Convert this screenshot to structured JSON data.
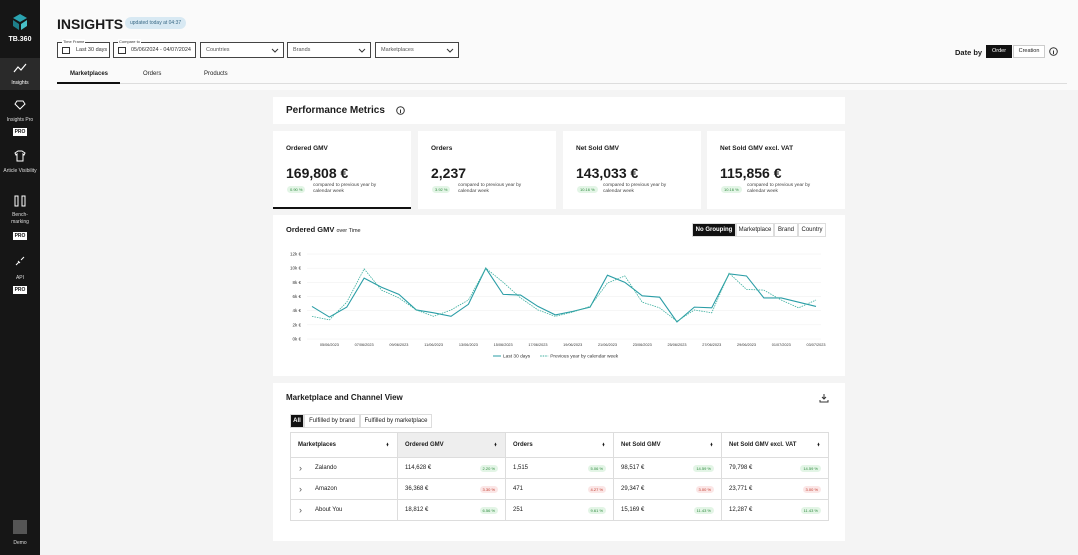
{
  "sidebar": {
    "logo": "TB.360",
    "items": [
      {
        "label": "Insights"
      },
      {
        "label": "Insights Pro",
        "badge": "PRO"
      },
      {
        "label": "Article Visibility"
      },
      {
        "label": "Bench-marking",
        "badge": "PRO"
      },
      {
        "label": "API",
        "badge": "PRO"
      }
    ],
    "user": "Demo"
  },
  "header": {
    "title": "INSIGHTS",
    "updated": "updated today at 04:37"
  },
  "filters": {
    "time_frame": {
      "legend": "Time Frame",
      "value": "Last 30 days"
    },
    "compare": {
      "legend": "Compare to",
      "value": "05/06/2024 - 04/07/2024"
    },
    "dropdowns": [
      "Countries",
      "Brands",
      "Marketplaces"
    ],
    "date_by": {
      "label": "Date by",
      "options": [
        "Order",
        "Creation"
      ]
    }
  },
  "tabs": [
    "Marketplaces",
    "Orders",
    "Products"
  ],
  "performance": {
    "title": "Performance Metrics",
    "kpis": [
      {
        "label": "Ordered GMV",
        "value": "169,808 €",
        "change": "0.90 %",
        "note": "compared to previous year by calendar week"
      },
      {
        "label": "Orders",
        "value": "2,237",
        "change": "3.92 %",
        "note": "compared to previous year by calendar week"
      },
      {
        "label": "Net Sold GMV",
        "value": "143,033 €",
        "change": "10.16 %",
        "note": "compared to previous year by calendar week"
      },
      {
        "label": "Net Sold GMV excl. VAT",
        "value": "115,856 €",
        "change": "10.16 %",
        "note": "compared to previous year by calendar week"
      }
    ]
  },
  "chart": {
    "type": "line",
    "title": "Ordered GMV",
    "subtitle": "over Time",
    "groupings": [
      "No Grouping",
      "Marketplace",
      "Brand",
      "Country"
    ],
    "categories": [
      null,
      "05/06/2023",
      null,
      "07/06/2023",
      null,
      "09/06/2023",
      null,
      "11/06/2023",
      null,
      "13/06/2023",
      null,
      "15/06/2023",
      null,
      "17/06/2023",
      null,
      "19/06/2023",
      null,
      "21/06/2023",
      null,
      "23/06/2023",
      null,
      "25/06/2023",
      null,
      "27/06/2023",
      null,
      "29/06/2023",
      null,
      "01/07/2023",
      null,
      "03/07/2023"
    ],
    "series": [
      {
        "name": "Last 30 days",
        "color": "#2a9da6",
        "dashed": false,
        "values": [
          4600,
          3100,
          4500,
          8600,
          7300,
          6300,
          4100,
          3700,
          3200,
          4900,
          10000,
          6300,
          6200,
          4600,
          3400,
          3900,
          4500,
          9000,
          8000,
          6100,
          5900,
          2400,
          4500,
          4400,
          9200,
          8900,
          5800,
          5800,
          5200,
          4600
        ]
      },
      {
        "name": "Previous year by calendar week",
        "color": "#3aae9e",
        "dashed": true,
        "values": [
          3200,
          2700,
          5200,
          9900,
          6900,
          5800,
          4100,
          3200,
          4100,
          5500,
          10000,
          8000,
          5800,
          4100,
          3200,
          3800,
          4600,
          7900,
          8900,
          5200,
          4400,
          2500,
          4100,
          3700,
          9300,
          7000,
          6900,
          5500,
          4400,
          5500
        ]
      }
    ],
    "ylim": [
      0,
      12000
    ],
    "yticks": [
      {
        "value": 0,
        "label": "0k €"
      },
      {
        "value": 2000,
        "label": "2k €"
      },
      {
        "value": 4000,
        "label": "4k €"
      },
      {
        "value": 6000,
        "label": "6k €"
      },
      {
        "value": 8000,
        "label": "8k €"
      },
      {
        "value": 10000,
        "label": "10k €"
      },
      {
        "value": 12000,
        "label": "12k €"
      }
    ],
    "grid": true
  },
  "table": {
    "title": "Marketplace and Channel View",
    "filters": [
      "All",
      "Fulfilled by brand",
      "Fulfilled by marketplace"
    ],
    "columns": [
      "Marketplaces",
      "Ordered GMV",
      "Orders",
      "Net Sold GMV",
      "Net Sold GMV excl. VAT"
    ],
    "rows": [
      [
        {
          "value": "Zalando"
        },
        {
          "value": "114,628 €",
          "change": "2.20 %",
          "trend": "up"
        },
        {
          "value": "1,515",
          "change": "5.06 %",
          "trend": "up"
        },
        {
          "value": "98,517 €",
          "change": "14.59 %",
          "trend": "up"
        },
        {
          "value": "79,798 €",
          "change": "14.59 %",
          "trend": "up"
        }
      ],
      [
        {
          "value": "Amazon"
        },
        {
          "value": "36,368 €",
          "change": "3.30 %",
          "trend": "down"
        },
        {
          "value": "471",
          "change": "4.27 %",
          "trend": "down"
        },
        {
          "value": "29,347 €",
          "change": "3.00 %",
          "trend": "down"
        },
        {
          "value": "23,771 €",
          "change": "3.00 %",
          "trend": "down"
        }
      ],
      [
        {
          "value": "About You"
        },
        {
          "value": "18,812 €",
          "change": "6.56 %",
          "trend": "up"
        },
        {
          "value": "251",
          "change": "9.61 %",
          "trend": "up"
        },
        {
          "value": "15,169 €",
          "change": "11.43 %",
          "trend": "up"
        },
        {
          "value": "12,287 €",
          "change": "11.43 %",
          "trend": "up"
        }
      ]
    ]
  }
}
